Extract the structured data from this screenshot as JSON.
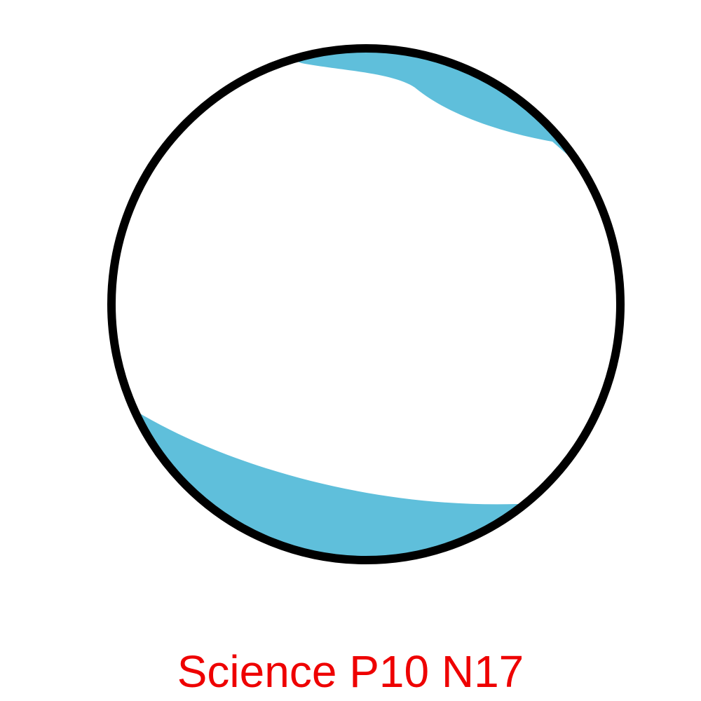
{
  "caption": {
    "text": "Science P10 N17",
    "color": "#ee0000"
  },
  "diagram": {
    "outline_color": "#000000",
    "fill_color": "#ffffff",
    "band_color": "#5fbfdb"
  }
}
